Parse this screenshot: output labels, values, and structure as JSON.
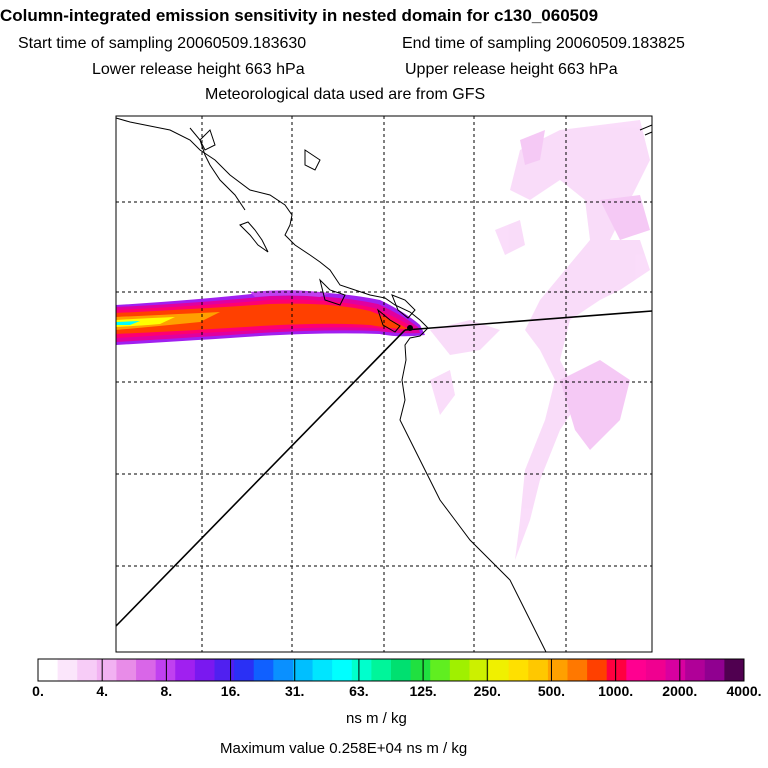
{
  "header": {
    "title": "Column-integrated emission sensitivity in nested domain for c130_060509",
    "start_time": "Start time of sampling 20060509.183630",
    "end_time": "End time of sampling 20060509.183825",
    "lower_height": "Lower release height  663 hPa",
    "upper_height": "Upper release height  663 hPa",
    "met_data": "Meteorological data used are from GFS"
  },
  "colorbar": {
    "colors": [
      "#ffffff",
      "#fbe6fb",
      "#f7ccf7",
      "#f2b2f2",
      "#e88ce8",
      "#d966e8",
      "#c040f0",
      "#a020f0",
      "#7a18f0",
      "#5020f0",
      "#2a30f5",
      "#1060ff",
      "#0a90ff",
      "#00bfff",
      "#00e5ff",
      "#00ffff",
      "#00ffcc",
      "#00f59a",
      "#00e070",
      "#20e040",
      "#60ee20",
      "#a0f000",
      "#ccf000",
      "#f0f000",
      "#ffe000",
      "#ffc800",
      "#ffa000",
      "#ff7800",
      "#ff4000",
      "#ff0040",
      "#ff0090",
      "#f00090",
      "#d800a0",
      "#b00098",
      "#900090",
      "#500050"
    ],
    "tick_labels": [
      "0.",
      "4.",
      "8.",
      "16.",
      "31.",
      "63.",
      "125.",
      "250.",
      "500.",
      "1000.",
      "2000.",
      "4000."
    ],
    "units": "ns m / kg"
  },
  "max_value": "Maximum value  0.258E+04 ns m / kg"
}
